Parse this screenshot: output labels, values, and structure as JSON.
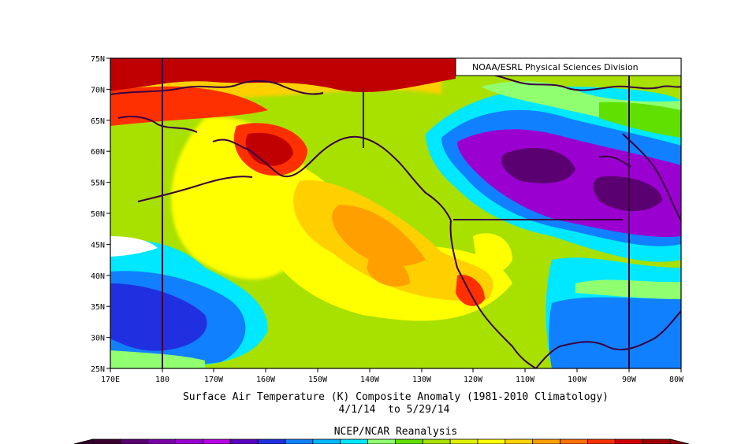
{
  "credit": "NOAA/ESRL Physical Sciences Division",
  "caption": {
    "line1": "Surface Air Temperature (K) Composite Anomaly (1981-2010 Climatology)",
    "line2": "4/1/14  to 5/29/14",
    "line3": "NCEP/NCAR Reanalysis"
  },
  "axes": {
    "lat_ticks": [
      "75N",
      "70N",
      "65N",
      "60N",
      "55N",
      "50N",
      "45N",
      "40N",
      "35N",
      "30N",
      "25N"
    ],
    "lon_ticks": [
      "170E",
      "180",
      "170W",
      "160W",
      "150W",
      "140W",
      "130W",
      "120W",
      "110W",
      "100W",
      "90W",
      "80W"
    ],
    "lat_range": [
      25,
      75
    ],
    "lon_range": [
      170,
      280
    ]
  },
  "colorbar_colors": [
    "#3a0030",
    "#5a0070",
    "#7a00a8",
    "#9a00d0",
    "#b800e8",
    "#5a00c0",
    "#2030e0",
    "#1080ff",
    "#00b8ff",
    "#00e8ff",
    "#90ff70",
    "#60e000",
    "#a8e000",
    "#e0f000",
    "#ffff00",
    "#ffd000",
    "#ffa000",
    "#ff7000",
    "#ff3000",
    "#d00000",
    "#a00000"
  ]
}
